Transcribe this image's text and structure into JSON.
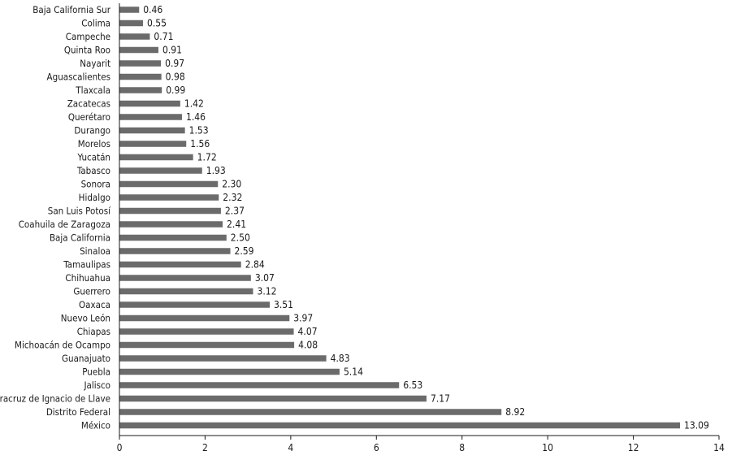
{
  "chart_data": {
    "type": "bar",
    "orientation": "horizontal",
    "categories": [
      "Baja California Sur",
      "Colima",
      "Campeche",
      "Quinta Roo",
      "Nayarit",
      "Aguascalientes",
      "Tlaxcala",
      "Zacatecas",
      "Querétaro",
      "Durango",
      "Morelos",
      "Yucatán",
      "Tabasco",
      "Sonora",
      "Hidalgo",
      "San Luis Potosí",
      "Coahuila de Zaragoza",
      "Baja California",
      "Sinaloa",
      "Tamaulipas",
      "Chihuahua",
      "Guerrero",
      "Oaxaca",
      "Nuevo León",
      "Chiapas",
      "Michoacán de Ocampo",
      "Guanajuato",
      "Puebla",
      "Jalisco",
      "Veracruz de Ignacio de Llave",
      "Distrito Federal",
      "México"
    ],
    "values": [
      0.46,
      0.55,
      0.71,
      0.91,
      0.97,
      0.98,
      0.99,
      1.42,
      1.46,
      1.53,
      1.56,
      1.72,
      1.93,
      2.3,
      2.32,
      2.37,
      2.41,
      2.5,
      2.59,
      2.84,
      3.07,
      3.12,
      3.51,
      3.97,
      4.07,
      4.08,
      4.83,
      5.14,
      6.53,
      7.17,
      8.92,
      13.09
    ],
    "value_labels": [
      "0.46",
      "0.55",
      "0.71",
      "0.91",
      "0.97",
      "0.98",
      "0.99",
      "1.42",
      "1.46",
      "1.53",
      "1.56",
      "1.72",
      "1.93",
      "2.30",
      "2.32",
      "2.37",
      "2.41",
      "2.50",
      "2.59",
      "2.84",
      "3.07",
      "3.12",
      "3.51",
      "3.97",
      "4.07",
      "4.08",
      "4.83",
      "5.14",
      "6.53",
      "7.17",
      "8.92",
      "13.09"
    ],
    "xlim": [
      0,
      14
    ],
    "xticks": [
      0,
      2,
      4,
      6,
      8,
      10,
      12,
      14
    ],
    "title": "",
    "xlabel": "",
    "ylabel": "",
    "grid": false,
    "bar_color": "#6b6b6b"
  }
}
